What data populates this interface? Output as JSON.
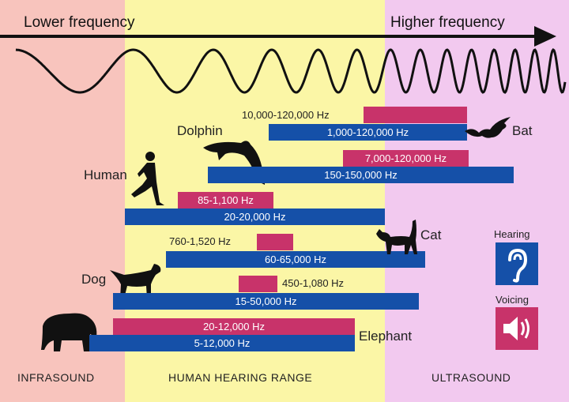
{
  "colors": {
    "infrasound": "#f8c4bd",
    "human_range": "#fbf6a6",
    "ultrasound": "#f2c9ef",
    "hearing": "#1550a8",
    "voicing": "#c8336a"
  },
  "header": {
    "lower": "Lower frequency",
    "higher": "Higher frequency"
  },
  "zones": {
    "infrasound": "INFRASOUND",
    "human": "HUMAN HEARING RANGE",
    "ultrasound": "ULTRASOUND"
  },
  "legend": {
    "hearing": "Hearing",
    "voicing": "Voicing",
    "hearing_icon": "ear-icon",
    "voicing_icon": "speaker-icon"
  },
  "animals": [
    {
      "name": "Bat",
      "voicing": "10,000-120,000 Hz",
      "hearing": "1,000-120,000 Hz"
    },
    {
      "name": "Dolphin",
      "voicing": "7,000-120,000 Hz",
      "hearing": "150-150,000 Hz"
    },
    {
      "name": "Human",
      "voicing": "85-1,100 Hz",
      "hearing": "20-20,000 Hz"
    },
    {
      "name": "Cat",
      "voicing": "760-1,520 Hz",
      "hearing": "60-65,000 Hz"
    },
    {
      "name": "Dog",
      "voicing": "450-1,080 Hz",
      "hearing": "15-50,000 Hz"
    },
    {
      "name": "Elephant",
      "voicing": "20-12,000 Hz",
      "hearing": "5-12,000 Hz"
    }
  ]
}
